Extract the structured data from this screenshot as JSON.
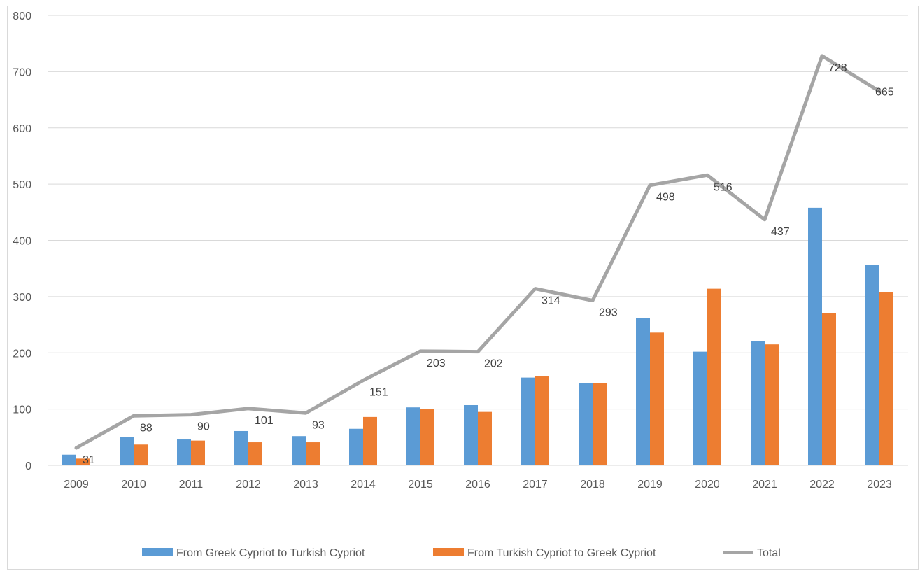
{
  "chart_data": {
    "type": "bar",
    "categories": [
      "2009",
      "2010",
      "2011",
      "2012",
      "2013",
      "2014",
      "2015",
      "2016",
      "2017",
      "2018",
      "2019",
      "2020",
      "2021",
      "2022",
      "2023"
    ],
    "series": [
      {
        "name": "From Greek Cypriot to Turkish Cypriot",
        "type": "bar",
        "color": "#5b9bd5",
        "values": [
          19,
          51,
          46,
          61,
          52,
          65,
          103,
          107,
          156,
          146,
          262,
          202,
          221,
          458,
          356
        ]
      },
      {
        "name": "From Turkish Cypriot to Greek Cypriot",
        "type": "bar",
        "color": "#ed7d31",
        "values": [
          12,
          37,
          44,
          41,
          41,
          86,
          100,
          95,
          158,
          146,
          236,
          314,
          215,
          270,
          308
        ]
      },
      {
        "name": "Total",
        "type": "line",
        "color": "#a5a5a5",
        "values": [
          31,
          88,
          90,
          101,
          93,
          151,
          203,
          202,
          314,
          293,
          498,
          516,
          437,
          728,
          665
        ],
        "data_labels": [
          "31",
          "88",
          "90",
          "101",
          "93",
          "151",
          "203",
          "202",
          "314",
          "293",
          "498",
          "516",
          "437",
          "728",
          "665"
        ]
      }
    ],
    "yticks": [
      "0",
      "100",
      "200",
      "300",
      "400",
      "500",
      "600",
      "700",
      "800"
    ],
    "ylim": [
      0,
      800
    ],
    "grid": true,
    "legend": "bottom"
  }
}
